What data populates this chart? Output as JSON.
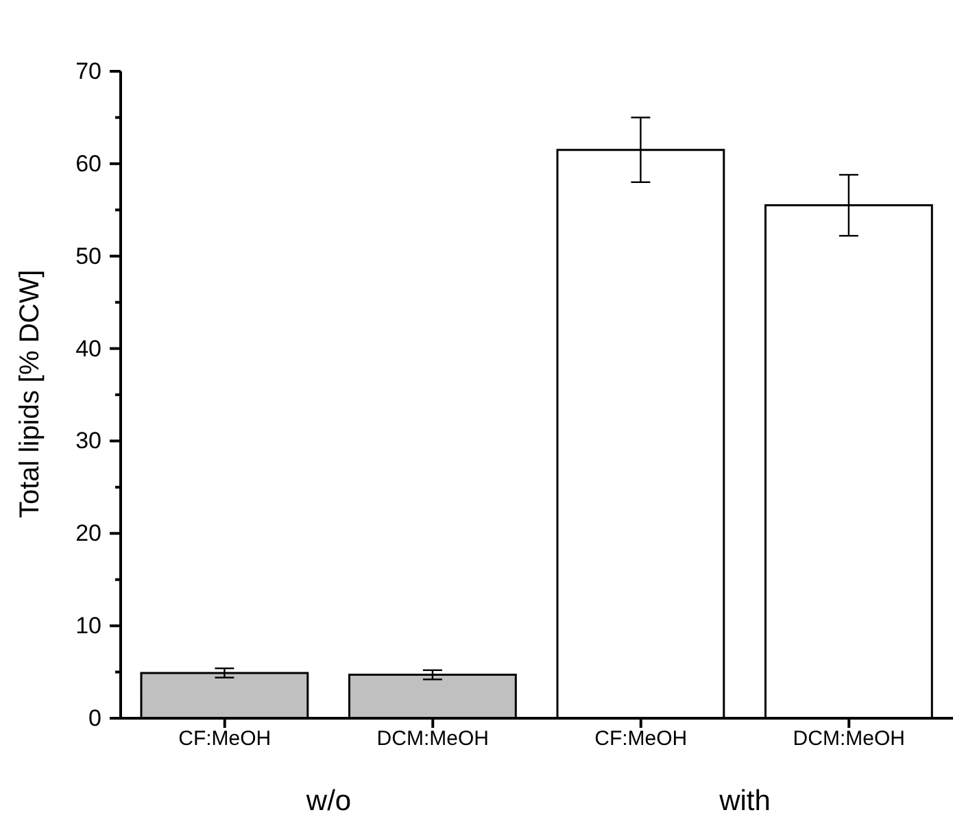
{
  "chart_data": {
    "type": "bar",
    "ylabel": "Total lipids [% DCW]",
    "categories": [
      "CF:MeOH",
      "DCM:MeOH",
      "CF:MeOH",
      "DCM:MeOH"
    ],
    "values": [
      4.9,
      4.7,
      61.5,
      55.5
    ],
    "errors": [
      0.5,
      0.5,
      3.5,
      3.3
    ],
    "colors": [
      "#c0c0c0",
      "#c0c0c0",
      "#ffffff",
      "#ffffff"
    ],
    "ylim": [
      0,
      70
    ],
    "yticks": [
      0,
      {
        "value": 5,
        "label": null
      },
      10,
      {
        "value": 15,
        "label": null
      },
      20,
      {
        "value": 25,
        "label": null
      },
      30,
      {
        "value": 35,
        "label": null
      },
      40,
      {
        "value": 45,
        "label": null
      },
      50,
      {
        "value": 55,
        "label": null
      },
      60,
      {
        "value": 65,
        "label": null
      },
      70
    ],
    "annotations": [
      "w/o",
      "with"
    ],
    "grid": false,
    "legend": false
  }
}
